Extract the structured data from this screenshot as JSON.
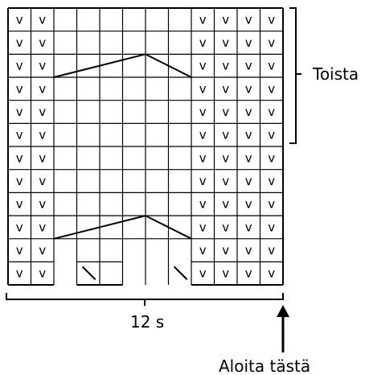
{
  "chart": {
    "columns": 12,
    "rows": 12,
    "knit_symbol": "v",
    "knit_columns": [
      1,
      2,
      9,
      10,
      11,
      12
    ],
    "gap_columns": [
      3,
      6,
      7,
      8
    ],
    "gap_rows": [
      1
    ],
    "cable_rows": [
      3,
      10
    ],
    "slash_marks": [
      "back-slash-column-4",
      "back-slash-column-8"
    ]
  },
  "labels": {
    "repeat": "Toista",
    "stitch_count": "12 s",
    "start_here": "Aloita tästä"
  }
}
